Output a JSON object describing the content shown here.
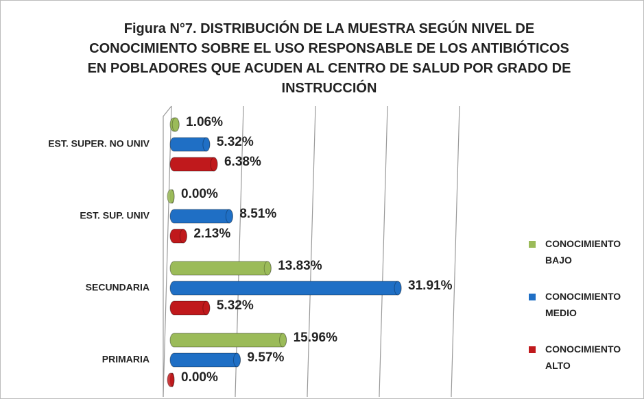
{
  "chart_data": {
    "type": "bar",
    "orientation": "horizontal",
    "title": "Figura N°7. DISTRIBUCIÓN DE LA MUESTRA SEGÚN NIVEL DE CONOCIMIENTO SOBRE EL USO RESPONSABLE DE LOS ANTIBIÓTICOS EN POBLADORES QUE ACUDEN AL CENTRO DE SALUD POR GRADO DE INSTRUCCIÓN",
    "categories": [
      "EST. SUPER. NO UNIV",
      "EST. SUP. UNIV",
      "SECUNDARIA",
      "PRIMARIA"
    ],
    "series": [
      {
        "name": "CONOCIMIENTO BAJO",
        "color": "#9bbb59",
        "values": [
          1.06,
          0.0,
          13.83,
          15.96
        ],
        "value_labels": [
          "1.06%",
          "0.00%",
          "13.83%",
          "15.96%"
        ]
      },
      {
        "name": "CONOCIMIENTO MEDIO",
        "color": "#1f6fc5",
        "values": [
          5.32,
          8.51,
          31.91,
          9.57
        ],
        "value_labels": [
          "5.32%",
          "8.51%",
          "31.91%",
          "9.57%"
        ]
      },
      {
        "name": "CONOCIMIENTO ALTO",
        "color": "#c0191c",
        "values": [
          6.38,
          2.13,
          5.32,
          0.0
        ],
        "value_labels": [
          "6.38%",
          "2.13%",
          "5.32%",
          "0.00%"
        ]
      }
    ],
    "xlim": [
      0,
      40
    ],
    "xticks": [
      0,
      10,
      20,
      30,
      40
    ],
    "grid": true,
    "legend": "right"
  }
}
